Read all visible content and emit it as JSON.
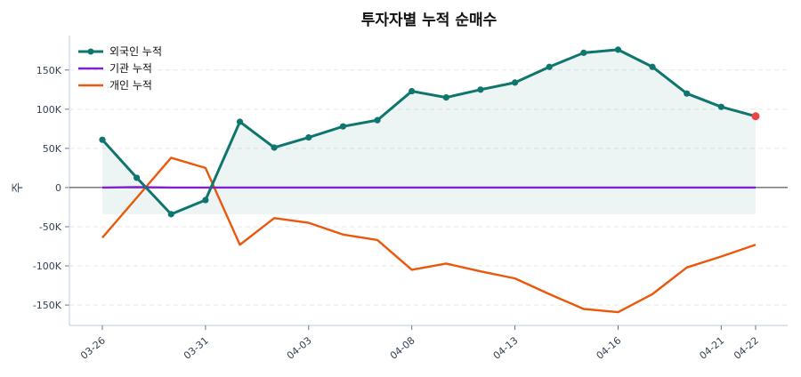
{
  "chart_data": {
    "type": "line",
    "title": "투자자별 누적 순매수",
    "xlabel": "",
    "ylabel": "주",
    "categories": [
      "03-26",
      "",
      "",
      "03-31",
      "",
      "",
      "04-03",
      "",
      "",
      "04-08",
      "",
      "",
      "04-13",
      "",
      "",
      "04-16",
      "",
      "",
      "04-21",
      "04-22"
    ],
    "ylim": [
      -176000,
      194000
    ],
    "yticks": [
      -150000,
      -100000,
      -50000,
      0,
      50000,
      100000,
      150000
    ],
    "ytick_labels": [
      "-150K",
      "-100K",
      "-50K",
      "0",
      "50K",
      "100K",
      "150K"
    ],
    "grid": true,
    "legend_position": "top-left",
    "series": [
      {
        "name": "외국인 누적",
        "color": "#0f766e",
        "markers": true,
        "fill_to_min": true,
        "values": [
          61000,
          12500,
          -34000,
          -16000,
          84000,
          51000,
          64000,
          78000,
          86000,
          123000,
          115000,
          125000,
          134000,
          154000,
          172000,
          176000,
          154000,
          120000,
          103000,
          91000
        ]
      },
      {
        "name": "기관 누적",
        "color": "#7e22ce",
        "markers": false,
        "values": [
          0,
          500,
          0,
          0,
          0,
          0,
          0,
          0,
          0,
          0,
          0,
          0,
          0,
          0,
          0,
          0,
          0,
          0,
          0,
          0
        ]
      },
      {
        "name": "개인 누적",
        "color": "#ea580c",
        "markers": false,
        "values": [
          -64000,
          -13000,
          38000,
          25000,
          -73000,
          -39000,
          -45000,
          -60000,
          -67000,
          -105000,
          -97000,
          -107000,
          -116000,
          -136000,
          -155000,
          -159000,
          -136000,
          -102000,
          -88000,
          -73000
        ]
      }
    ],
    "last_point_color": "#ef4444"
  }
}
